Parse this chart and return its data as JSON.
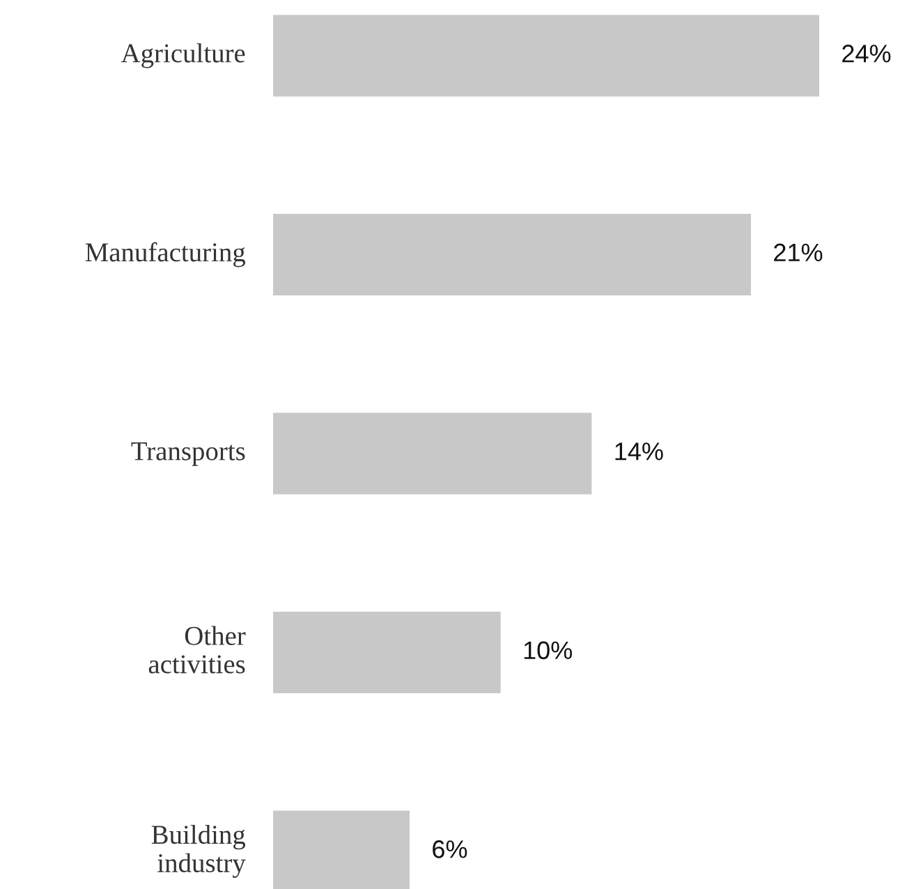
{
  "chart_data": {
    "type": "bar",
    "orientation": "horizontal",
    "categories": [
      "Agriculture",
      "Manufacturing",
      "Transports",
      "Other\nactivities",
      "Building\nindustry"
    ],
    "values": [
      24,
      21,
      14,
      10,
      6
    ],
    "value_labels": [
      "24%",
      "21%",
      "14%",
      "10%",
      "6%"
    ],
    "color": "#c8c8c8"
  }
}
